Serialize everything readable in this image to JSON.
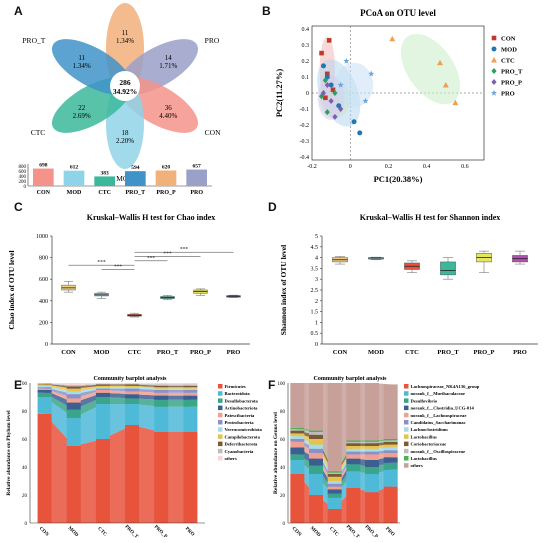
{
  "labels": {
    "A": "A",
    "B": "B",
    "C": "C",
    "D": "D",
    "E": "E",
    "F": "F"
  },
  "colors": {
    "CON": "#f4938a",
    "MOD": "#8fd3e8",
    "CTC": "#3bb89a",
    "PRO_T": "#3f93c9",
    "PRO_P": "#f2b07a",
    "PRO": "#9aa0c8",
    "CON_marker": "#c0392b",
    "MOD_marker": "#1f78b4",
    "CTC_marker": "#f0a050",
    "PRO_T_marker": "#2aa05a",
    "PRO_P_marker": "#7b5fb0",
    "PRO_marker": "#6fa6d6"
  },
  "chart_data": [
    {
      "type": "venn",
      "petals": [
        {
          "name": "PRO_P",
          "count": "11",
          "pct": "1.34%"
        },
        {
          "name": "PRO",
          "count": "14",
          "pct": "1.71%"
        },
        {
          "name": "CON",
          "count": "36",
          "pct": "4.40%"
        },
        {
          "name": "MOD",
          "count": "18",
          "pct": "2.20%"
        },
        {
          "name": "CTC",
          "count": "22",
          "pct": "2.69%"
        },
        {
          "name": "PRO_T",
          "count": "11",
          "pct": "1.34%"
        }
      ],
      "core": {
        "count": "286",
        "pct": "34.92%"
      },
      "bars": {
        "categories": [
          "CON",
          "MOD",
          "CTC",
          "PRO_T",
          "PRO_P",
          "PRO"
        ],
        "values": [
          698,
          612,
          383,
          594,
          620,
          657
        ],
        "yticks": [
          "800",
          "600",
          "400",
          "200",
          "0"
        ],
        "ylim": [
          0,
          800
        ]
      }
    },
    {
      "type": "scatter",
      "title": "PCoA on OTU level",
      "xlabel": "PC1(20.38%)",
      "ylabel": "PC2(11.27%)",
      "xlim": [
        -0.2,
        0.7
      ],
      "ylim": [
        -0.42,
        0.42
      ],
      "xticks": [
        "-0.2",
        "0",
        "0.2",
        "0.4",
        "0.6"
      ],
      "yticks": [
        "0.4",
        "0.3",
        "0.2",
        "0.1",
        "0",
        "-0.1",
        "-0.2",
        "-0.3",
        "-0.4"
      ],
      "legend": [
        "CON",
        "MOD",
        "CTC",
        "PRO_T",
        "PRO_P",
        "PRO"
      ],
      "series": [
        {
          "name": "CON",
          "shape": "square",
          "x": [
            -0.11,
            -0.15,
            -0.12,
            -0.09,
            -0.13
          ],
          "y": [
            0.33,
            0.25,
            0.12,
            0.02,
            -0.03
          ]
        },
        {
          "name": "MOD",
          "shape": "circle",
          "x": [
            -0.14,
            -0.12,
            0.02,
            0.05,
            -0.06,
            -0.1
          ],
          "y": [
            0.17,
            0.1,
            -0.18,
            -0.25,
            -0.08,
            0.05
          ]
        },
        {
          "name": "CTC",
          "shape": "triangle",
          "x": [
            0.22,
            0.47,
            0.5,
            0.55
          ],
          "y": [
            0.34,
            0.19,
            0.05,
            -0.06
          ]
        },
        {
          "name": "PRO_T",
          "shape": "diamond",
          "x": [
            -0.13,
            -0.15,
            -0.12,
            -0.08
          ],
          "y": [
            0.08,
            -0.02,
            -0.12,
            0.0
          ]
        },
        {
          "name": "PRO_P",
          "shape": "diamond",
          "x": [
            -0.12,
            -0.1,
            -0.08,
            -0.05,
            -0.14
          ],
          "y": [
            0.05,
            -0.05,
            -0.15,
            -0.1,
            0.0
          ]
        },
        {
          "name": "PRO",
          "shape": "star",
          "x": [
            -0.02,
            0.08,
            0.11,
            -0.05
          ],
          "y": [
            0.2,
            -0.05,
            0.12,
            0.05
          ]
        }
      ]
    },
    {
      "type": "box",
      "title": "Kruskal–Wallis H test for Chao index",
      "ylabel": "Chao index of OTU level",
      "ylim": [
        0,
        1000
      ],
      "yticks": [
        "1000",
        "800",
        "600",
        "400",
        "200",
        "0"
      ],
      "categories": [
        "CON",
        "MOD",
        "CTC",
        "PRO_T",
        "PRO_P",
        "PRO"
      ],
      "boxes": [
        {
          "min": 480,
          "q1": 500,
          "median": 520,
          "q3": 545,
          "max": 580
        },
        {
          "min": 420,
          "q1": 445,
          "median": 455,
          "q3": 470,
          "max": 480
        },
        {
          "min": 250,
          "q1": 258,
          "median": 265,
          "q3": 275,
          "max": 285
        },
        {
          "min": 410,
          "q1": 420,
          "median": 430,
          "q3": 440,
          "max": 450
        },
        {
          "min": 450,
          "q1": 470,
          "median": 485,
          "q3": 500,
          "max": 510
        },
        {
          "min": 430,
          "q1": 438,
          "median": 443,
          "q3": 448,
          "max": 452
        }
      ],
      "significance": [
        "***",
        "***",
        "***",
        "***",
        "***"
      ]
    },
    {
      "type": "box",
      "title": "Kruskal–Wallis H test for Shannon index",
      "ylabel": "Shannon index of OTU level",
      "ylim": [
        0,
        5
      ],
      "yticks": [
        "5",
        "4.5",
        "4",
        "3.5",
        "3",
        "2.5",
        "2",
        "1.5",
        "1",
        "0.5",
        "0"
      ],
      "categories": [
        "CON",
        "MOD",
        "CTC",
        "PRO_T",
        "PRO_P",
        "PRO"
      ],
      "boxes": [
        {
          "min": 3.7,
          "q1": 3.8,
          "median": 3.9,
          "q3": 4.0,
          "max": 4.05
        },
        {
          "min": 3.9,
          "q1": 3.95,
          "median": 3.98,
          "q3": 4.0,
          "max": 4.02
        },
        {
          "min": 3.3,
          "q1": 3.45,
          "median": 3.6,
          "q3": 3.75,
          "max": 3.85
        },
        {
          "min": 3.0,
          "q1": 3.2,
          "median": 3.4,
          "q3": 3.8,
          "max": 4.0
        },
        {
          "min": 3.3,
          "q1": 3.8,
          "median": 4.0,
          "q3": 4.2,
          "max": 4.3
        },
        {
          "min": 3.7,
          "q1": 3.8,
          "median": 3.95,
          "q3": 4.1,
          "max": 4.3
        }
      ]
    },
    {
      "type": "area",
      "title": "Community barplot analysis",
      "ylabel": "Relative abundance on Phylum level",
      "ylim": [
        0,
        100
      ],
      "yticks": [
        "100",
        "80",
        "60",
        "40",
        "20",
        "0"
      ],
      "categories": [
        "CON",
        "MOD",
        "CTC",
        "PRO_T",
        "PRO_P",
        "PRO"
      ],
      "series": [
        {
          "name": "Firmicutes",
          "color": "#e8533c",
          "values": [
            78,
            55,
            60,
            70,
            65,
            65
          ]
        },
        {
          "name": "Bacteroidota",
          "color": "#4fb9d8",
          "values": [
            12,
            20,
            25,
            15,
            18,
            18
          ]
        },
        {
          "name": "Desulfobacterota",
          "color": "#3aa58a",
          "values": [
            3,
            6,
            5,
            4,
            5,
            5
          ]
        },
        {
          "name": "Actinobacteriota",
          "color": "#3c5f92",
          "values": [
            2,
            5,
            3,
            3,
            3,
            3
          ]
        },
        {
          "name": "Patescibacteria",
          "color": "#f0a090",
          "values": [
            1,
            3,
            2,
            2,
            2,
            2
          ]
        },
        {
          "name": "Proteobacteria",
          "color": "#8c90c8",
          "values": [
            1,
            3,
            1,
            2,
            2,
            2
          ]
        },
        {
          "name": "Verrucomicrobiota",
          "color": "#a6dbe8",
          "values": [
            1,
            2,
            1,
            1,
            1,
            1
          ]
        },
        {
          "name": "Campilobacterota",
          "color": "#e6c34e",
          "values": [
            1,
            2,
            1,
            1,
            1,
            1
          ]
        },
        {
          "name": "Deferribacterota",
          "color": "#7a5a34",
          "values": [
            0.5,
            1.5,
            1,
            1,
            1,
            1
          ]
        },
        {
          "name": "Cyanobacteria",
          "color": "#bcbcbc",
          "values": [
            0.3,
            1,
            0.5,
            0.5,
            1,
            1
          ]
        },
        {
          "name": "others",
          "color": "#f8d6d8",
          "values": [
            0.2,
            1.5,
            0.5,
            0.5,
            1,
            1
          ]
        }
      ]
    },
    {
      "type": "area",
      "title": "Community barplot analysis",
      "ylabel": "Relative abundance on Genus level",
      "ylim": [
        0,
        100
      ],
      "yticks": [
        "100",
        "80",
        "60",
        "40",
        "20",
        "0"
      ],
      "categories": [
        "CON",
        "MOD",
        "CTC",
        "PRO_T",
        "PRO_P",
        "PRO"
      ],
      "series": [
        {
          "name": "Lachnospiraceae_NK4A136_group",
          "color": "#e8533c",
          "values": [
            35,
            20,
            10,
            25,
            22,
            26
          ]
        },
        {
          "name": "norank_f__Muribaculaceae",
          "color": "#4fb9d8",
          "values": [
            10,
            15,
            8,
            12,
            13,
            12
          ]
        },
        {
          "name": "Desulfovibrio",
          "color": "#3aa58a",
          "values": [
            4,
            6,
            3,
            5,
            5,
            5
          ]
        },
        {
          "name": "norank_f__Clostridia_UCG-014",
          "color": "#3c5f92",
          "values": [
            5,
            5,
            3,
            4,
            5,
            4
          ]
        },
        {
          "name": "norank_f__Lachnospiraceae",
          "color": "#f0a090",
          "values": [
            4,
            4,
            2,
            3,
            4,
            3
          ]
        },
        {
          "name": "Candidatus_Saccharimonas",
          "color": "#8c90c8",
          "values": [
            2,
            3,
            2,
            2,
            2,
            2
          ]
        },
        {
          "name": "Lachnoclostridium",
          "color": "#a6dbe8",
          "values": [
            2,
            3,
            2,
            2,
            2,
            2
          ]
        },
        {
          "name": "Lactobacillus",
          "color": "#e6c34e",
          "values": [
            2,
            4,
            3,
            2,
            2,
            2
          ]
        },
        {
          "name": "Coriobacteriaceae",
          "color": "#7a5a34",
          "values": [
            2,
            3,
            2,
            2,
            2,
            2
          ]
        },
        {
          "name": "norank_f__Oscillospiraceae",
          "color": "#bcbcbc",
          "values": [
            1,
            2,
            1,
            1,
            1,
            1
          ]
        },
        {
          "name": "Lactobacillus2",
          "color": "#4cb050",
          "values": [
            1,
            1,
            1,
            1,
            1,
            1
          ]
        },
        {
          "name": "others",
          "color": "#c8a09a",
          "values": [
            32,
            34,
            63,
            41,
            41,
            39
          ]
        }
      ],
      "legend": [
        "Lachnospiraceae_NK4A136_group",
        "norank_f__Muribaculaceae",
        "Desulfovibrio",
        "norank_f__Clostridia_UCG-014",
        "norank_f__Lachnospiraceae",
        "Candidatus_Saccharimonas",
        "Lachnoclostridium",
        "Lactobacillus",
        "Coriobacteriaceae",
        "norank_f__Oscillospiraceae",
        "Lactobacillus",
        "others"
      ]
    }
  ]
}
